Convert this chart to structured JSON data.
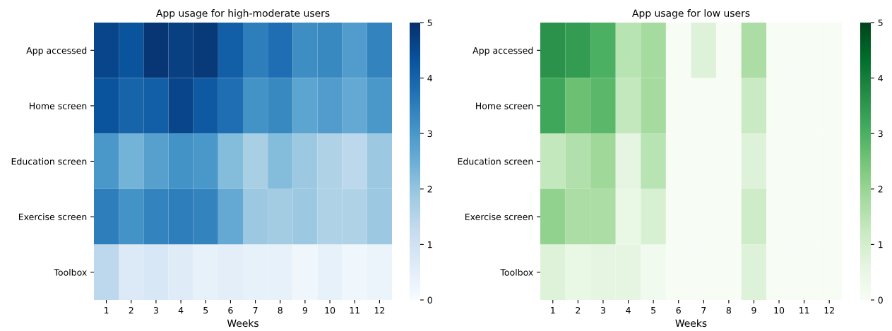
{
  "chart_data": [
    {
      "type": "heatmap",
      "title": "App usage for high-moderate users",
      "xlabel": "Weeks",
      "categories": [
        "1",
        "2",
        "3",
        "4",
        "5",
        "6",
        "7",
        "8",
        "9",
        "10",
        "11",
        "12"
      ],
      "y_categories": [
        "App accessed",
        "Home screen",
        "Education screen",
        "Exercise screen",
        "Toolbox"
      ],
      "cells": [
        [
          4.6,
          4.3,
          4.9,
          4.7,
          4.8,
          4.1,
          3.5,
          3.8,
          3.2,
          3.3,
          2.9,
          3.4
        ],
        [
          4.3,
          4.0,
          4.1,
          4.6,
          4.2,
          3.8,
          3.1,
          3.3,
          2.7,
          2.9,
          2.6,
          3.0
        ],
        [
          3.0,
          2.4,
          2.8,
          3.1,
          3.0,
          2.2,
          1.7,
          2.2,
          1.9,
          1.6,
          1.4,
          1.9
        ],
        [
          3.5,
          3.1,
          3.4,
          3.5,
          3.4,
          2.6,
          1.9,
          1.8,
          1.9,
          1.6,
          1.6,
          1.9
        ],
        [
          1.4,
          0.7,
          0.8,
          0.6,
          0.4,
          0.5,
          0.4,
          0.4,
          0.2,
          0.4,
          0.2,
          0.3
        ]
      ],
      "colors": [
        "#f7fbff",
        "#deebf7",
        "#c6dbef",
        "#9ecae1",
        "#6baed6",
        "#4292c6",
        "#2171b5",
        "#08519c",
        "#08306b"
      ],
      "clim": [
        0,
        5
      ],
      "cticks": [
        0,
        1,
        2,
        3,
        4,
        5
      ]
    },
    {
      "type": "heatmap",
      "title": "App usage for low users",
      "xlabel": "Weeks",
      "categories": [
        "1",
        "2",
        "3",
        "4",
        "5",
        "6",
        "7",
        "8",
        "9",
        "10",
        "11",
        "12"
      ],
      "y_categories": [
        "App accessed",
        "Home screen",
        "Education screen",
        "Exercise screen",
        "Toolbox"
      ],
      "cells": [
        [
          3.6,
          3.4,
          3.0,
          1.5,
          1.8,
          0,
          0.8,
          0,
          1.7,
          0,
          0,
          0
        ],
        [
          3.2,
          2.6,
          2.8,
          1.3,
          1.8,
          0,
          0,
          0,
          1.2,
          0,
          0,
          0
        ],
        [
          1.3,
          1.6,
          1.9,
          0.6,
          1.5,
          0,
          0,
          0,
          0.8,
          0,
          0,
          0
        ],
        [
          2.1,
          1.7,
          1.7,
          0.5,
          0.9,
          0,
          0,
          0,
          1.1,
          0,
          0,
          0
        ],
        [
          0.8,
          0.5,
          0.6,
          0.6,
          0.2,
          0,
          0,
          0,
          0.8,
          0,
          0,
          0
        ]
      ],
      "colors": [
        "#f7fcf5",
        "#e5f5e0",
        "#c7e9c0",
        "#a1d99b",
        "#74c476",
        "#41ab5d",
        "#238b45",
        "#006d2c",
        "#00441b"
      ],
      "clim": [
        0,
        5
      ],
      "cticks": [
        0,
        1,
        2,
        3,
        4,
        5
      ]
    }
  ]
}
